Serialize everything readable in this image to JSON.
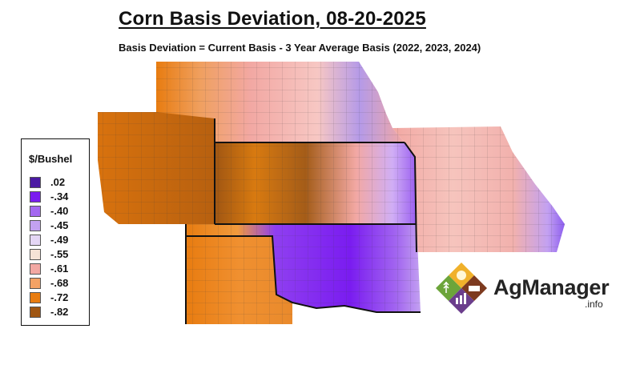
{
  "title": "Corn Basis Deviation, 08-20-2025",
  "subtitle": "Basis Deviation = Current Basis - 3 Year Average Basis (2022, 2023, 2024)",
  "legend": {
    "title": "$/Bushel",
    "items": [
      {
        "label": ".02",
        "color": "#4b1aa3"
      },
      {
        "label": "-.34",
        "color": "#7a1cf0"
      },
      {
        "label": "-.40",
        "color": "#a367f0"
      },
      {
        "label": "-.45",
        "color": "#c3a1f1"
      },
      {
        "label": "-.49",
        "color": "#e4d6f5"
      },
      {
        "label": "-.55",
        "color": "#f6e3d6"
      },
      {
        "label": "-.61",
        "color": "#f2a8a3"
      },
      {
        "label": "-.68",
        "color": "#f4a265"
      },
      {
        "label": "-.72",
        "color": "#e87c10"
      },
      {
        "label": "-.82",
        "color": "#a05612"
      }
    ]
  },
  "logo": {
    "text": "AgManager",
    "suffix": ".info",
    "colors": [
      "#f0b12b",
      "#7d3a1f",
      "#6b3d8c",
      "#6ca53a"
    ]
  }
}
